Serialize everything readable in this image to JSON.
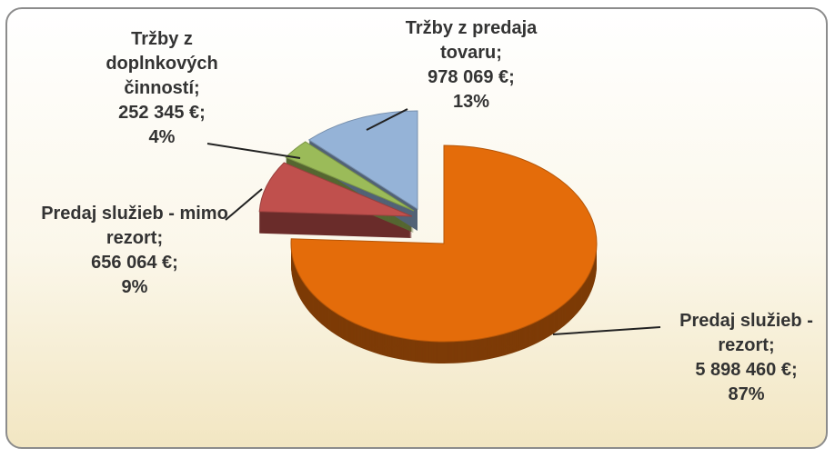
{
  "chart_data": {
    "type": "pie",
    "categories": [
      "Predaj služieb - rezort",
      "Predaj služieb - mimo rezort",
      "Tržby z doplnkových činností",
      "Tržby z predaja tovaru"
    ],
    "values": [
      5898460,
      656064,
      252345,
      978069
    ],
    "value_labels": [
      "5 898 460 €",
      "656 064 €",
      "252 345 €",
      "978 069 €"
    ],
    "percent_labels": [
      "87%",
      "9%",
      "4%",
      "13%"
    ],
    "label_separator": ";",
    "colors": [
      "#e46c0a",
      "#c0504d",
      "#9bbb59",
      "#95b3d7"
    ]
  }
}
